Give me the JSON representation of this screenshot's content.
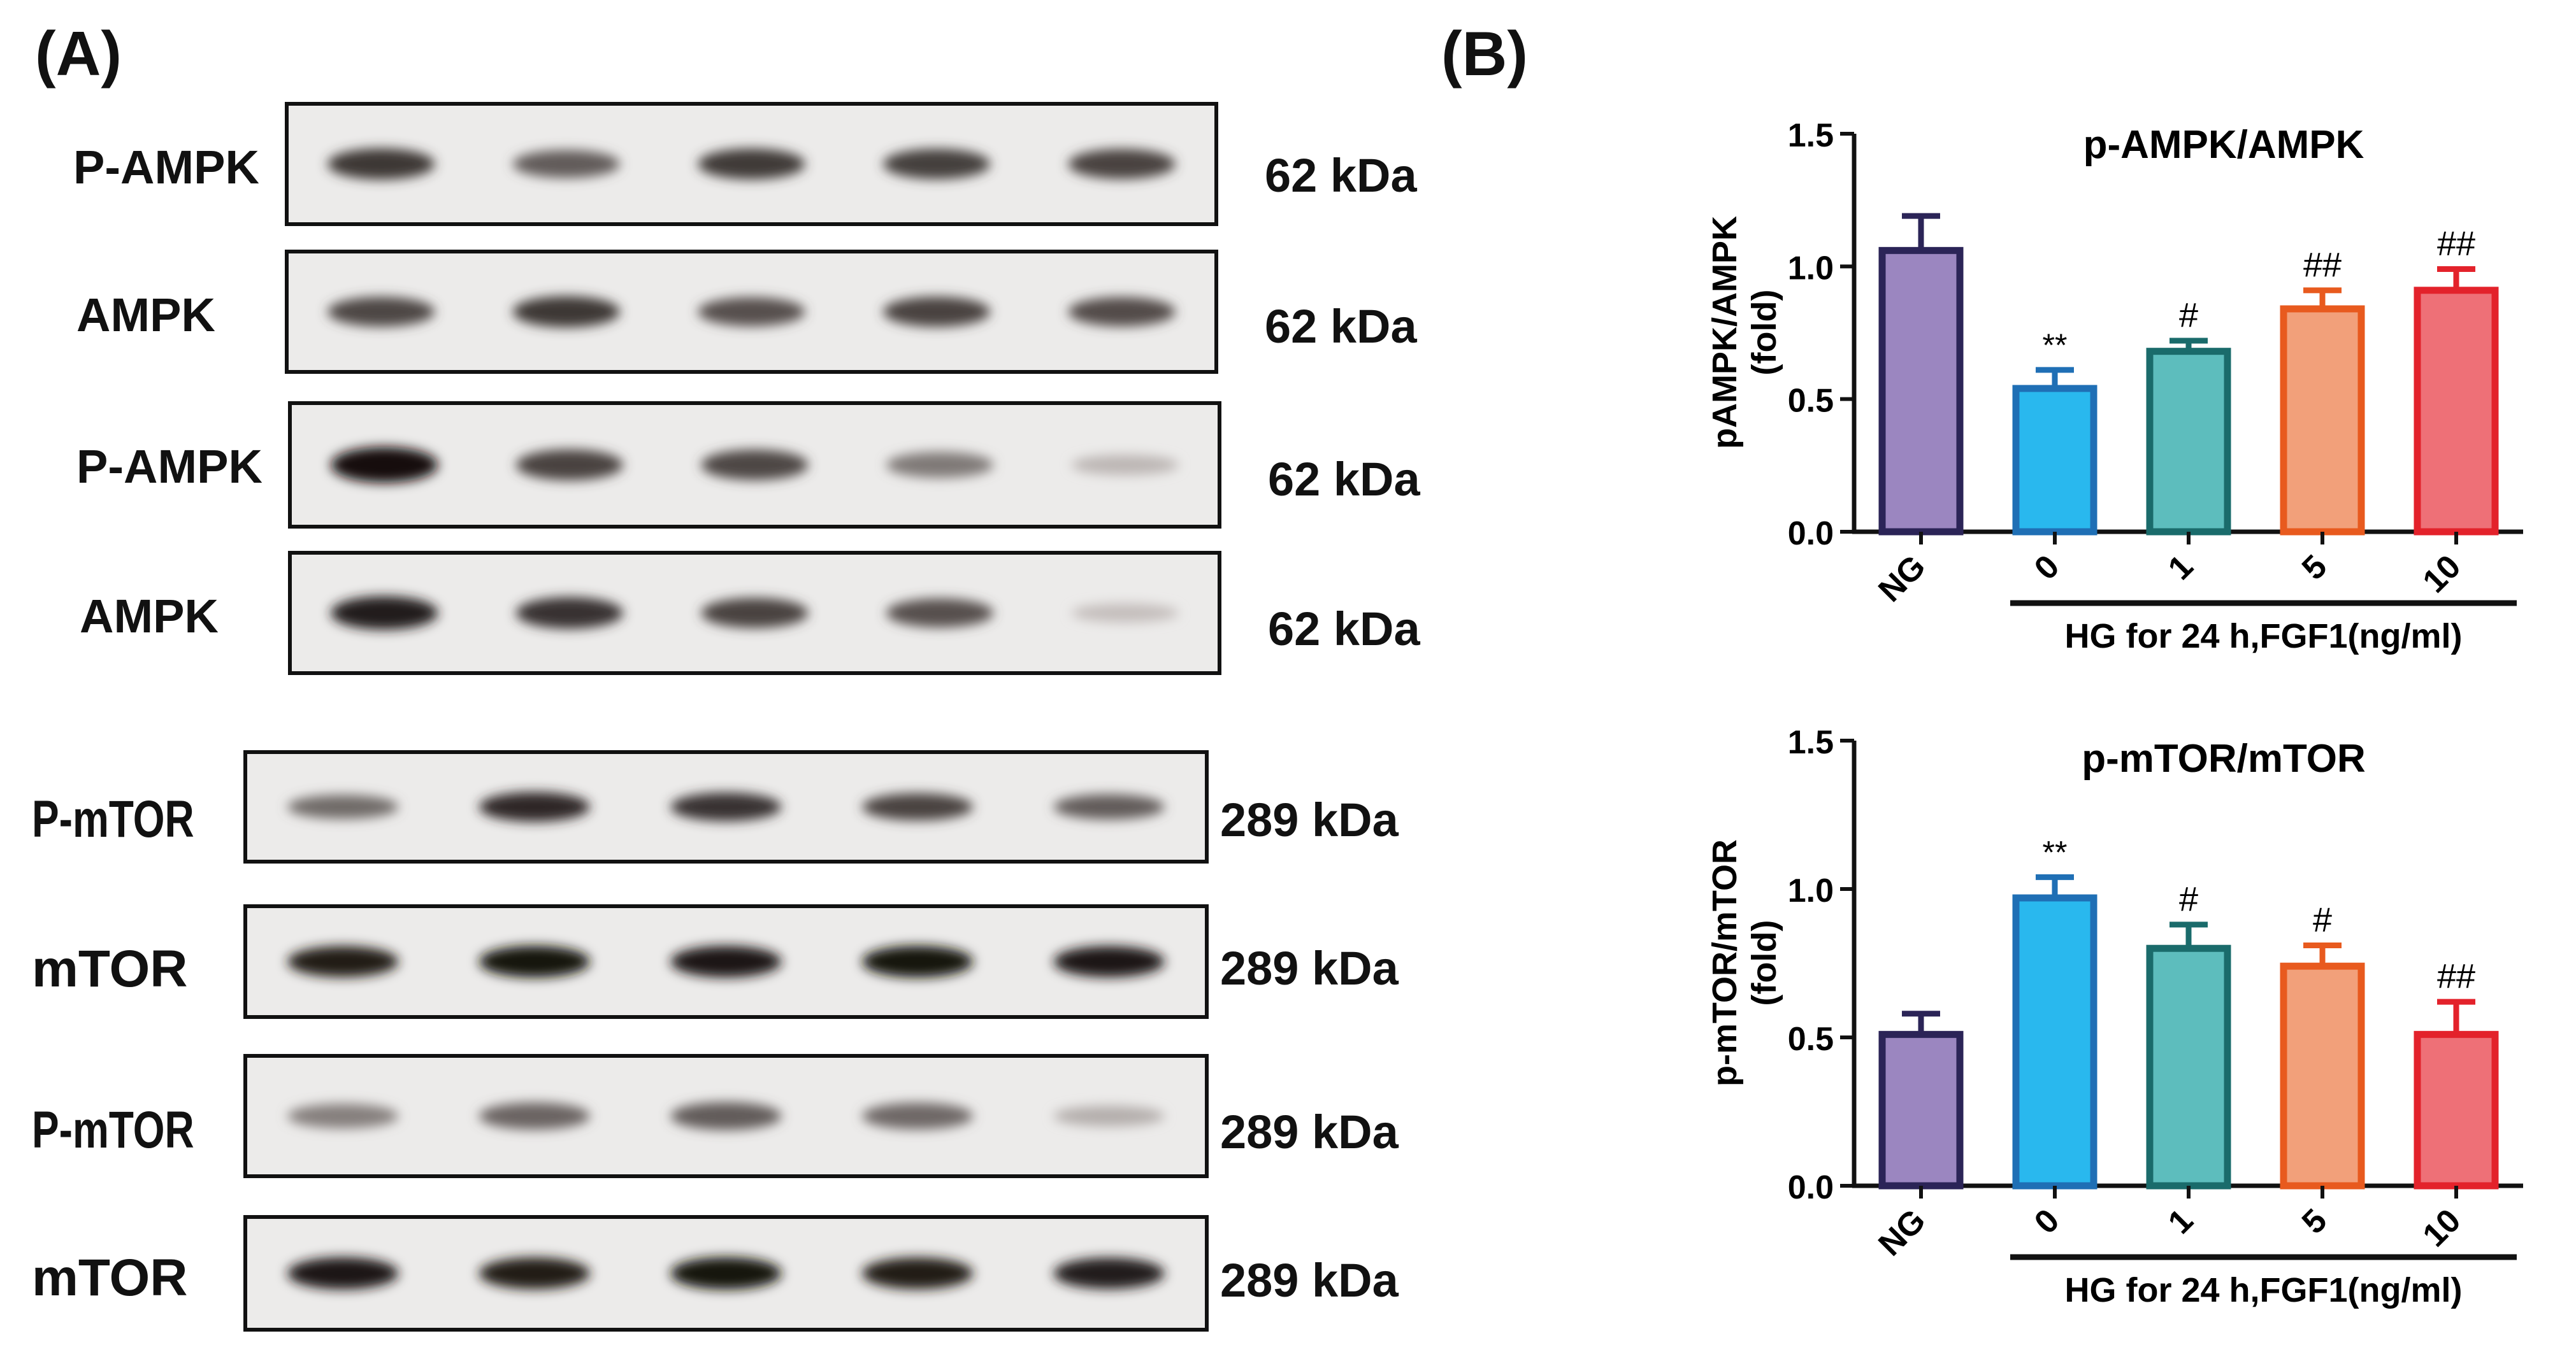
{
  "panels": {
    "a": "(A)",
    "b": "(B)"
  },
  "blots": [
    {
      "label": "P-AMPK",
      "kda": "62 kDa",
      "intensities": [
        0.8,
        0.62,
        0.78,
        0.76,
        0.74
      ]
    },
    {
      "label": "AMPK",
      "kda": "62 kDa",
      "intensities": [
        0.72,
        0.8,
        0.68,
        0.74,
        0.7
      ]
    },
    {
      "label": "P-AMPK",
      "kda": "62 kDa",
      "intensities": [
        1.0,
        0.74,
        0.72,
        0.48,
        0.18
      ]
    },
    {
      "label": "AMPK",
      "kda": "62 kDa",
      "intensities": [
        0.92,
        0.82,
        0.74,
        0.68,
        0.14
      ]
    },
    {
      "label": "P-mTOR",
      "kda": "289 kDa",
      "intensities": [
        0.55,
        0.88,
        0.82,
        0.74,
        0.62
      ]
    },
    {
      "label": "mTOR",
      "kda": "289 kDa",
      "intensities": [
        0.94,
        0.98,
        0.97,
        0.98,
        0.95
      ]
    },
    {
      "label": "P-mTOR",
      "kda": "289 kDa",
      "intensities": [
        0.45,
        0.58,
        0.62,
        0.56,
        0.22
      ]
    },
    {
      "label": "mTOR",
      "kda": "289 kDa",
      "intensities": [
        0.96,
        0.94,
        0.98,
        0.94,
        0.92
      ]
    }
  ],
  "colors": [
    "#9b86c0",
    "#29b8ee",
    "#5dbdbd",
    "#f2a07a",
    "#ee7077"
  ],
  "edge_colors": [
    "#2b2457",
    "#1f6fb5",
    "#1a6b6b",
    "#e85a1e",
    "#e3222b"
  ],
  "chart_data": [
    {
      "type": "bar",
      "title": "p-AMPK/AMPK",
      "ylabel_lines": [
        "pAMPK/AMPK",
        "(fold)"
      ],
      "categories": [
        "NG",
        "0",
        "1",
        "5",
        "10"
      ],
      "values": [
        1.06,
        0.54,
        0.68,
        0.84,
        0.91
      ],
      "errors": [
        0.13,
        0.07,
        0.04,
        0.07,
        0.08
      ],
      "annotations": [
        "",
        "**",
        "#",
        "##",
        "##"
      ],
      "ylim": [
        0,
        1.5
      ],
      "yticks": [
        "0.0",
        "0.5",
        "1.0",
        "1.5"
      ],
      "group_label": "HG for 24 h,FGF1(ng/ml)"
    },
    {
      "type": "bar",
      "title": "p-mTOR/mTOR",
      "ylabel_lines": [
        "p-mTOR/mTOR",
        "(fold)"
      ],
      "categories": [
        "NG",
        "0",
        "1",
        "5",
        "10"
      ],
      "values": [
        0.51,
        0.97,
        0.8,
        0.74,
        0.51
      ],
      "errors": [
        0.07,
        0.07,
        0.08,
        0.07,
        0.11
      ],
      "annotations": [
        "",
        "**",
        "#",
        "#",
        "##"
      ],
      "ylim": [
        0,
        1.5
      ],
      "yticks": [
        "0.0",
        "0.5",
        "1.0",
        "1.5"
      ],
      "group_label": "HG for 24 h,FGF1(ng/ml)"
    }
  ]
}
